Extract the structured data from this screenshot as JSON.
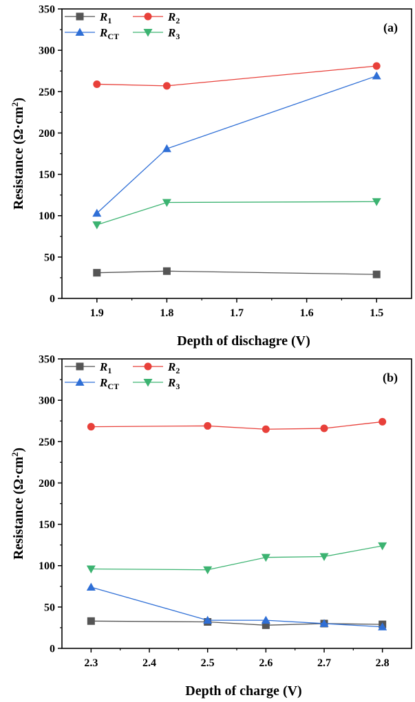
{
  "chart_data": [
    {
      "type": "line",
      "panel_label": "(a)",
      "xlabel": "Depth of dischagre (V)",
      "ylabel": "Resistance (Ω·cm",
      "ylabel_sup": "2",
      "ylabel_close": ")",
      "xlim": [
        1.95,
        1.45
      ],
      "ylim": [
        0,
        350
      ],
      "x_reversed": true,
      "xticks": [
        1.9,
        1.8,
        1.7,
        1.6,
        1.5
      ],
      "xtick_labels": [
        "1.9",
        "1.8",
        "1.7",
        "1.6",
        "1.5"
      ],
      "yticks": [
        0,
        50,
        100,
        150,
        200,
        250,
        300,
        350
      ],
      "ytick_labels": [
        "0",
        "50",
        "100",
        "150",
        "200",
        "250",
        "300",
        "350"
      ],
      "legend_position": "top-left",
      "x": [
        1.9,
        1.8,
        1.5
      ],
      "series": [
        {
          "name": "R",
          "sub": "1",
          "color": "#555555",
          "marker": "square",
          "values": [
            31,
            33,
            29
          ]
        },
        {
          "name": "R",
          "sub": "2",
          "color": "#e8403a",
          "marker": "circle",
          "values": [
            259,
            257,
            281
          ]
        },
        {
          "name": "R",
          "sub": "CT",
          "color": "#2f6fd6",
          "marker": "triangle-up",
          "values": [
            103,
            181,
            269
          ]
        },
        {
          "name": "R",
          "sub": "3",
          "color": "#3cb371",
          "marker": "triangle-down",
          "values": [
            89,
            116,
            117
          ]
        }
      ]
    },
    {
      "type": "line",
      "panel_label": "(b)",
      "xlabel": "Depth of charge (V)",
      "ylabel": "Resistance (Ω·cm",
      "ylabel_sup": "2",
      "ylabel_close": ")",
      "xlim": [
        2.25,
        2.85
      ],
      "ylim": [
        0,
        350
      ],
      "x_reversed": false,
      "xticks": [
        2.3,
        2.4,
        2.5,
        2.6,
        2.7,
        2.8
      ],
      "xtick_labels": [
        "2.3",
        "2.4",
        "2.5",
        "2.6",
        "2.7",
        "2.8"
      ],
      "yticks": [
        0,
        50,
        100,
        150,
        200,
        250,
        300,
        350
      ],
      "ytick_labels": [
        "0",
        "50",
        "100",
        "150",
        "200",
        "250",
        "300",
        "350"
      ],
      "legend_position": "top-left",
      "x": [
        2.3,
        2.5,
        2.6,
        2.7,
        2.8
      ],
      "series": [
        {
          "name": "R",
          "sub": "1",
          "color": "#555555",
          "marker": "square",
          "values": [
            33,
            32,
            28,
            30,
            29
          ]
        },
        {
          "name": "R",
          "sub": "2",
          "color": "#e8403a",
          "marker": "circle",
          "values": [
            268,
            269,
            265,
            266,
            274
          ]
        },
        {
          "name": "R",
          "sub": "CT",
          "color": "#2f6fd6",
          "marker": "triangle-up",
          "values": [
            74,
            34,
            34,
            30,
            26
          ]
        },
        {
          "name": "R",
          "sub": "3",
          "color": "#3cb371",
          "marker": "triangle-down",
          "values": [
            96,
            95,
            110,
            111,
            124
          ]
        }
      ]
    }
  ]
}
